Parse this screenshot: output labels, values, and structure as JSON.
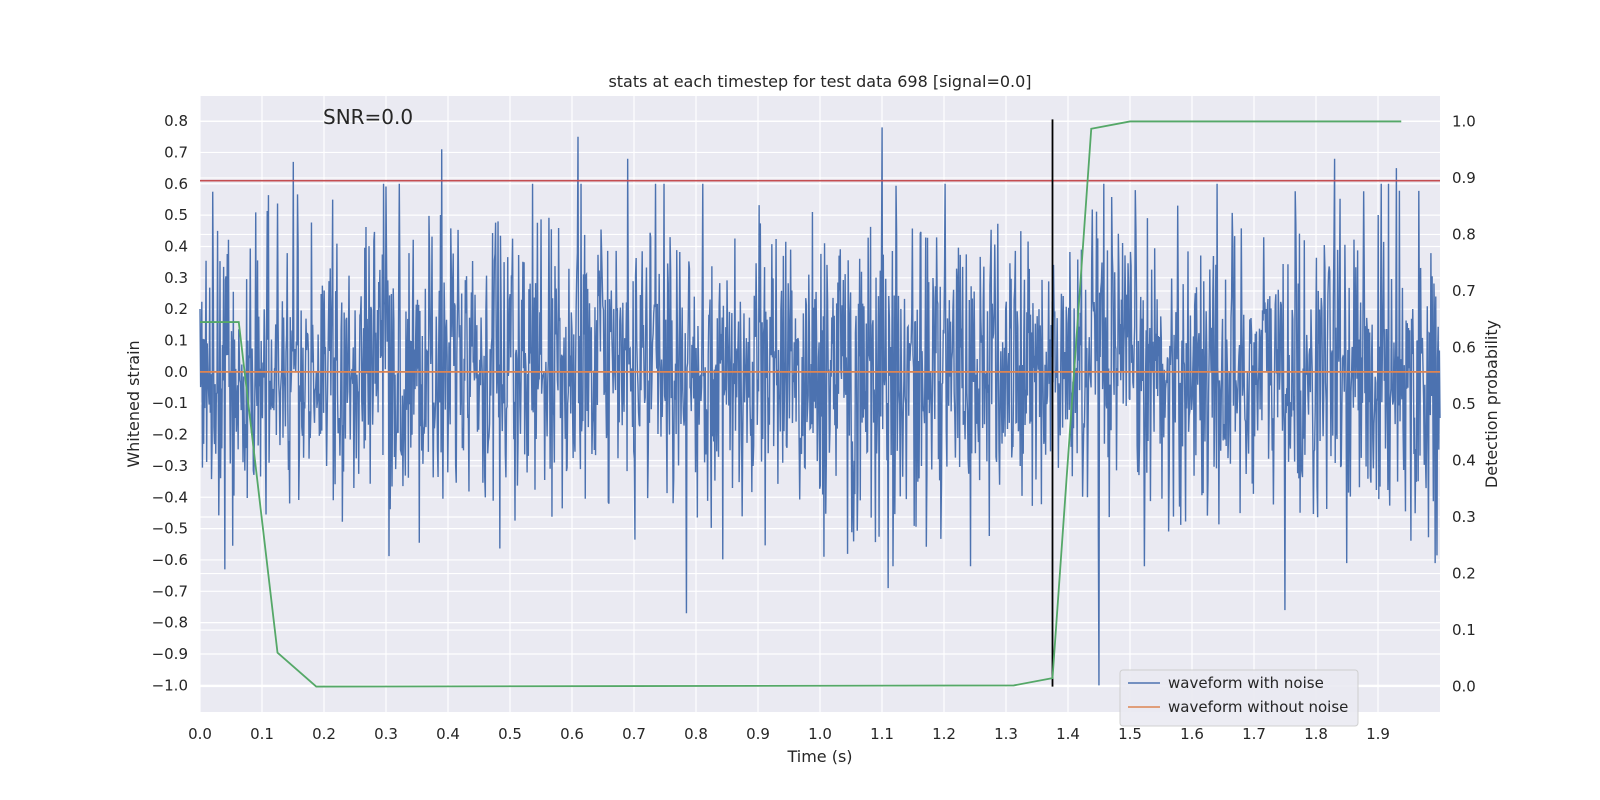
{
  "chart_data": {
    "type": "line",
    "title": "stats at each timestep for test data 698 [signal=0.0]",
    "xlabel": "Time (s)",
    "ylabel": "Whitened strain",
    "y2label": "Detection probability",
    "annotation": "SNR=0.0",
    "xlim": [
      0.0,
      2.0
    ],
    "ylim": [
      -1.085,
      0.88
    ],
    "y2lim": [
      -0.045,
      1.045
    ],
    "x_ticks": [
      "0.0",
      "0.1",
      "0.2",
      "0.3",
      "0.4",
      "0.5",
      "0.6",
      "0.7",
      "0.8",
      "0.9",
      "1.0",
      "1.1",
      "1.2",
      "1.3",
      "1.4",
      "1.5",
      "1.6",
      "1.7",
      "1.8",
      "1.9"
    ],
    "y_ticks": [
      "0.8",
      "0.7",
      "0.6",
      "0.5",
      "0.4",
      "0.3",
      "0.2",
      "0.1",
      "0.0",
      "−0.1",
      "−0.2",
      "−0.3",
      "−0.4",
      "−0.5",
      "−0.6",
      "−0.7",
      "−0.8",
      "−0.9",
      "−1.0"
    ],
    "y2_ticks": [
      "1.0",
      "0.9",
      "0.8",
      "0.7",
      "0.6",
      "0.5",
      "0.4",
      "0.3",
      "0.2",
      "0.1",
      "0.0"
    ],
    "grid": true,
    "legend_position": "lower-right",
    "series": [
      {
        "name": "waveform with noise",
        "color": "#4c72b0",
        "axis": "left",
        "samples": 2048,
        "x_range": [
          0.0,
          2.0
        ],
        "amplitude_std": 0.25,
        "peaks": [
          [
            0.15,
            0.67
          ],
          [
            0.39,
            0.71
          ],
          [
            0.61,
            0.75
          ],
          [
            0.69,
            0.68
          ],
          [
            1.1,
            0.78
          ],
          [
            1.83,
            0.68
          ],
          [
            1.93,
            0.65
          ],
          [
            0.785,
            -0.77
          ],
          [
            1.45,
            -1.0
          ],
          [
            1.75,
            -0.76
          ],
          [
            1.11,
            -0.69
          ],
          [
            0.04,
            -0.63
          ]
        ]
      },
      {
        "name": "waveform without noise",
        "color": "#dd8452",
        "axis": "left",
        "x": [
          0.0,
          2.0
        ],
        "y": [
          0.0,
          0.0
        ]
      },
      {
        "color": "#55a868",
        "axis": "right",
        "x": [
          0.0,
          0.0625,
          0.125,
          0.1875,
          1.3125,
          1.375,
          1.4375,
          1.5,
          1.9375
        ],
        "y": [
          0.645,
          0.645,
          0.06,
          0.0,
          0.002,
          0.015,
          0.987,
          1.0,
          1.0
        ]
      }
    ],
    "threshold_line": {
      "y": 0.61,
      "color": "#c44e52"
    },
    "vertical_marker": {
      "x": 1.375,
      "color": "#000000"
    }
  }
}
